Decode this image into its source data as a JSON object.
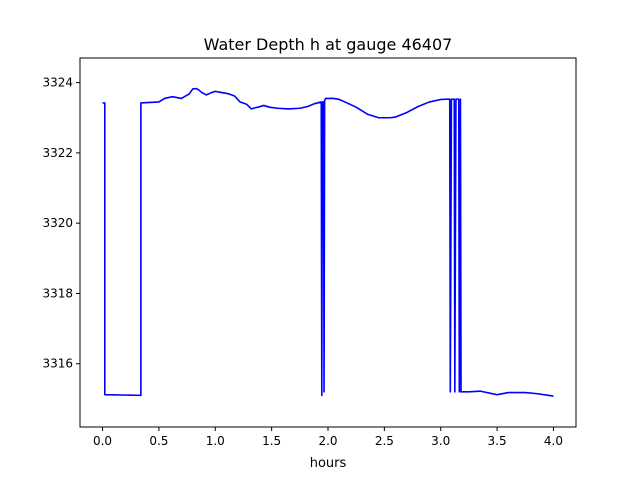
{
  "chart_data": {
    "type": "line",
    "title": "Water Depth h at gauge 46407",
    "xlabel": "hours",
    "ylabel": "",
    "xlim": [
      -0.2,
      4.2
    ],
    "ylim": [
      3314.2,
      3324.7
    ],
    "x_ticks": [
      0.0,
      0.5,
      1.0,
      1.5,
      2.0,
      2.5,
      3.0,
      3.5,
      4.0
    ],
    "x_tick_labels": [
      "0.0",
      "0.5",
      "1.0",
      "1.5",
      "2.0",
      "2.5",
      "3.0",
      "3.5",
      "4.0"
    ],
    "y_ticks": [
      3316,
      3318,
      3320,
      3322,
      3324
    ],
    "y_tick_labels": [
      "3316",
      "3318",
      "3320",
      "3322",
      "3324"
    ],
    "grid": false,
    "legend": "none",
    "series": [
      {
        "color": "#0000ff",
        "x": [
          0.0,
          0.02,
          0.02,
          0.34,
          0.34,
          0.5,
          0.55,
          0.62,
          0.7,
          0.77,
          0.8,
          0.83,
          0.85,
          0.88,
          0.92,
          0.97,
          1.0,
          1.05,
          1.12,
          1.17,
          1.22,
          1.28,
          1.32,
          1.35,
          1.38,
          1.43,
          1.48,
          1.55,
          1.65,
          1.75,
          1.82,
          1.88,
          1.94,
          1.945,
          1.95,
          1.96,
          1.965,
          1.97,
          1.975,
          1.98,
          2.0,
          2.05,
          2.1,
          2.15,
          2.25,
          2.35,
          2.45,
          2.55,
          2.6,
          2.7,
          2.8,
          2.9,
          3.0,
          3.08,
          3.085,
          3.095,
          3.1,
          3.12,
          3.125,
          3.135,
          3.14,
          3.16,
          3.165,
          3.175,
          3.18,
          3.25,
          3.35,
          3.5,
          3.6,
          3.75,
          3.85,
          4.0
        ],
        "y": [
          3323.42,
          3323.42,
          3315.12,
          3315.1,
          3323.42,
          3323.45,
          3323.55,
          3323.6,
          3323.55,
          3323.68,
          3323.82,
          3323.83,
          3323.8,
          3323.72,
          3323.65,
          3323.72,
          3323.75,
          3323.72,
          3323.68,
          3323.62,
          3323.45,
          3323.38,
          3323.25,
          3323.28,
          3323.3,
          3323.35,
          3323.3,
          3323.27,
          3323.25,
          3323.27,
          3323.32,
          3323.4,
          3323.45,
          3315.1,
          3323.45,
          3323.45,
          3315.2,
          3323.5,
          3323.52,
          3323.55,
          3323.55,
          3323.55,
          3323.52,
          3323.45,
          3323.3,
          3323.1,
          3323.0,
          3323.0,
          3323.02,
          3323.15,
          3323.32,
          3323.45,
          3323.52,
          3323.53,
          3315.2,
          3323.53,
          3323.53,
          3323.53,
          3315.2,
          3323.53,
          3323.53,
          3323.53,
          3315.2,
          3323.53,
          3315.2,
          3315.2,
          3315.22,
          3315.12,
          3315.18,
          3315.18,
          3315.15,
          3315.08
        ]
      }
    ]
  }
}
